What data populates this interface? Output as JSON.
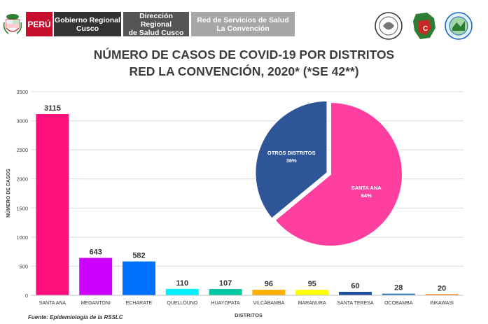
{
  "header": {
    "country": "PERÚ",
    "gobierno": "Gobierno Regional\nCusco",
    "direccion": "Dirección  Regional\nde Salud Cusco",
    "red": "Red de Servicios de Salud\nLa Convención"
  },
  "colors": {
    "bars": [
      "#ff0f7b",
      "#cc00ff",
      "#0070ff",
      "#00f0ff",
      "#00c8a0",
      "#ffb000",
      "#ffff00",
      "#1f4e9b",
      "#2e75b6",
      "#ff7f00"
    ],
    "pie": [
      "#2d5597",
      "#ff3fa0"
    ]
  },
  "chart_data": {
    "type": "bar",
    "title": "NÚMERO DE CASOS DE COVID-19 POR DISTRITOS",
    "subtitle": "RED LA CONVENCIÓN, 2020* (*SE 42**)",
    "xlabel": "DISTRITOS",
    "ylabel": "NÚMERO DE CASOS",
    "ylim": [
      0,
      3500
    ],
    "yticks": [
      "0",
      "500",
      "1000",
      "1500",
      "2000",
      "2500",
      "3000",
      "3500"
    ],
    "categories": [
      "SANTA ANA",
      "MEGANTONI",
      "ECHARATE",
      "QUELLOUNO",
      "HUAYOPATA",
      "VILCABAMBA",
      "MARANURA",
      "SANTA TERESA",
      "OCOBAMBA",
      "INKAWASI"
    ],
    "values": [
      3115,
      643,
      582,
      110,
      107,
      96,
      95,
      60,
      28,
      20
    ],
    "value_labels": [
      "3115",
      "643",
      "582",
      "110",
      "107",
      "96",
      "95",
      "60",
      "28",
      "20"
    ],
    "grid": true,
    "inset_pie": {
      "type": "pie",
      "slices": [
        {
          "label": "OTROS DISTRITOS",
          "value": 36,
          "value_label": "36%"
        },
        {
          "label": "SANTA ANA",
          "value": 64,
          "value_label": "64%"
        }
      ]
    },
    "source": "Fuente: Epidemiología de la RSSLC"
  }
}
